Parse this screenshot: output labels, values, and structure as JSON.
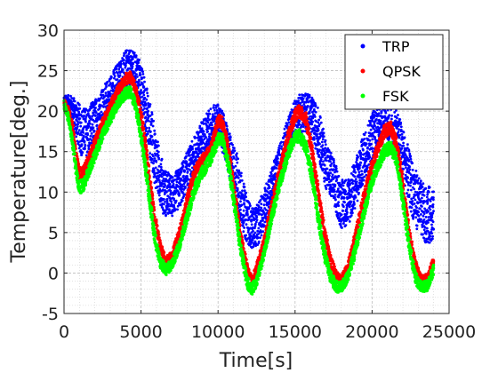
{
  "chart_data": {
    "type": "scatter",
    "xlabel": "Time[s]",
    "ylabel": "Temperature[deg.]",
    "xlim": [
      0,
      25000
    ],
    "ylim": [
      -5,
      30
    ],
    "xticks": [
      0,
      5000,
      10000,
      15000,
      20000,
      25000
    ],
    "yticks": [
      -5,
      0,
      5,
      10,
      15,
      20,
      25,
      30
    ],
    "x_tick_labels": [
      "0",
      "5000",
      "10000",
      "15000",
      "20000",
      "25000"
    ],
    "y_tick_labels": [
      "-5",
      "0",
      "5",
      "10",
      "15",
      "20",
      "25",
      "30"
    ],
    "grid": true,
    "minor_grid": true,
    "legend_position": "top-right",
    "series": [
      {
        "name": "TRP",
        "color": "#0000ff",
        "x": [
          0,
          400,
          800,
          1100,
          1500,
          2000,
          2500,
          3000,
          3500,
          4000,
          4400,
          4800,
          5200,
          5600,
          6000,
          6500,
          7000,
          7500,
          8000,
          8500,
          9000,
          9500,
          10000,
          10400,
          10800,
          11300,
          11800,
          12200,
          12600,
          13000,
          13500,
          14000,
          14500,
          15000,
          15500,
          16000,
          16500,
          17000,
          17500,
          18000,
          18500,
          19000,
          19500,
          20000,
          20500,
          21000,
          21500,
          22000,
          22500,
          23000,
          23500,
          24000
        ],
        "y_mid": [
          21.5,
          20.5,
          19,
          17.5,
          17.5,
          18.5,
          19.8,
          21.5,
          23.3,
          25,
          25.5,
          24.5,
          21.5,
          17.5,
          13.5,
          10,
          9.5,
          10.5,
          12.5,
          14.5,
          16.5,
          18,
          18.5,
          17,
          14,
          11,
          7,
          5.5,
          6,
          8,
          10.5,
          13.5,
          16.5,
          19,
          20,
          19.5,
          17.5,
          13.5,
          11.2,
          8.5,
          9,
          11.5,
          14.5,
          17,
          18.5,
          19.5,
          18,
          15,
          11,
          8.5,
          7,
          7.5
        ],
        "y_spread": [
          0.4,
          1.5,
          2.5,
          3,
          3,
          3,
          3,
          3,
          2.8,
          2.5,
          2,
          2.5,
          3,
          3.5,
          3.5,
          3,
          2.5,
          2.5,
          2.5,
          2.5,
          2.5,
          2.5,
          2.5,
          2.5,
          3,
          3.5,
          3,
          2.5,
          2.5,
          2.5,
          2.5,
          2.5,
          2.5,
          2.5,
          2.5,
          2.5,
          3,
          3,
          3,
          3,
          3,
          3,
          3,
          3,
          3,
          3,
          3,
          3,
          3.5,
          3.5,
          3.5,
          3.5
        ]
      },
      {
        "name": "QPSK",
        "color": "#ff0000",
        "x": [
          0,
          300,
          600,
          800,
          1000,
          1300,
          1600,
          2000,
          2500,
          3000,
          3500,
          4000,
          4300,
          4600,
          5000,
          5400,
          5800,
          6200,
          6600,
          7000,
          7500,
          8000,
          8500,
          9000,
          9500,
          10000,
          10300,
          10700,
          11100,
          11500,
          11900,
          12200,
          12500,
          13000,
          13500,
          14000,
          14500,
          15000,
          15300,
          15700,
          16100,
          16500,
          16900,
          17300,
          17700,
          18000,
          18400,
          18800,
          19300,
          19800,
          20300,
          20800,
          21200,
          21600,
          22000,
          22400,
          22800,
          23200,
          23600,
          24000
        ],
        "y_mid": [
          21,
          20,
          17.5,
          14,
          12.2,
          12.5,
          14,
          16,
          18.5,
          20.5,
          22.5,
          24,
          24.2,
          23,
          19.5,
          14,
          8,
          3.5,
          1.3,
          2,
          5,
          9,
          12.5,
          14,
          15,
          18.8,
          18.5,
          15,
          9.5,
          4,
          0.5,
          -1.2,
          0.5,
          4,
          8.5,
          12.5,
          16.5,
          19.5,
          20,
          19,
          15,
          10,
          5,
          1.5,
          -0.5,
          -1,
          0.5,
          3.5,
          8,
          12,
          15,
          17.5,
          18,
          16,
          11,
          5,
          1,
          -1,
          -0.8,
          1.5
        ],
        "y_spread": [
          0.5,
          0.6,
          0.8,
          0.9,
          0.9,
          0.8,
          0.8,
          0.7,
          0.7,
          0.7,
          0.7,
          0.7,
          0.7,
          0.8,
          0.9,
          1,
          1,
          0.8,
          0.7,
          0.7,
          0.7,
          0.8,
          0.8,
          0.8,
          0.8,
          0.8,
          0.8,
          0.9,
          1,
          1,
          0.8,
          0.7,
          0.7,
          0.7,
          0.8,
          0.8,
          0.8,
          0.8,
          0.8,
          0.9,
          1,
          1,
          1,
          0.8,
          0.7,
          0.7,
          0.7,
          0.8,
          0.8,
          0.8,
          0.8,
          0.8,
          0.8,
          0.9,
          1,
          1,
          0.8,
          0.7,
          0.7,
          0.7
        ]
      },
      {
        "name": "FSK",
        "color": "#00ff00",
        "x": [
          0,
          300,
          600,
          800,
          1000,
          1300,
          1600,
          2000,
          2500,
          3000,
          3500,
          4000,
          4300,
          4600,
          5000,
          5400,
          5800,
          6200,
          6600,
          7000,
          7500,
          8000,
          8500,
          9000,
          9500,
          10000,
          10300,
          10700,
          11100,
          11500,
          11900,
          12200,
          12500,
          13000,
          13500,
          14000,
          14500,
          15000,
          15300,
          15700,
          16100,
          16500,
          16900,
          17300,
          17700,
          18000,
          18400,
          18800,
          19300,
          19800,
          20300,
          20800,
          21200,
          21600,
          22000,
          22400,
          22800,
          23200,
          23600,
          24000
        ],
        "y_mid": [
          20.8,
          19,
          15.5,
          12.5,
          10.5,
          11,
          12.5,
          14.5,
          17,
          19,
          21,
          22.2,
          22.4,
          21,
          17,
          11.5,
          5.5,
          1.5,
          0.4,
          1,
          3.5,
          7,
          10.5,
          12.5,
          14,
          16.5,
          16.5,
          13,
          8,
          2.5,
          -1.2,
          -2,
          -1,
          2.5,
          7,
          11,
          14.5,
          16.8,
          17,
          15.5,
          12,
          7,
          2.5,
          -0.5,
          -1.7,
          -1.8,
          -0.5,
          2,
          6,
          10,
          13,
          15,
          15.5,
          14,
          9,
          3.5,
          -0.5,
          -1.8,
          -1.5,
          0.5
        ],
        "y_spread": [
          0.5,
          0.6,
          0.8,
          0.9,
          0.9,
          0.8,
          0.8,
          0.7,
          0.7,
          0.7,
          0.7,
          0.7,
          0.7,
          0.8,
          0.9,
          1,
          1,
          0.8,
          0.7,
          0.7,
          0.7,
          0.8,
          0.8,
          0.8,
          0.8,
          0.8,
          0.8,
          0.9,
          1,
          1,
          0.8,
          0.7,
          0.7,
          0.7,
          0.8,
          0.8,
          0.8,
          0.8,
          0.8,
          0.9,
          1,
          1,
          1,
          0.8,
          0.7,
          0.7,
          0.7,
          0.8,
          0.8,
          0.8,
          0.8,
          0.8,
          0.8,
          0.9,
          1,
          1,
          0.8,
          0.7,
          0.7,
          0.7
        ]
      }
    ]
  }
}
